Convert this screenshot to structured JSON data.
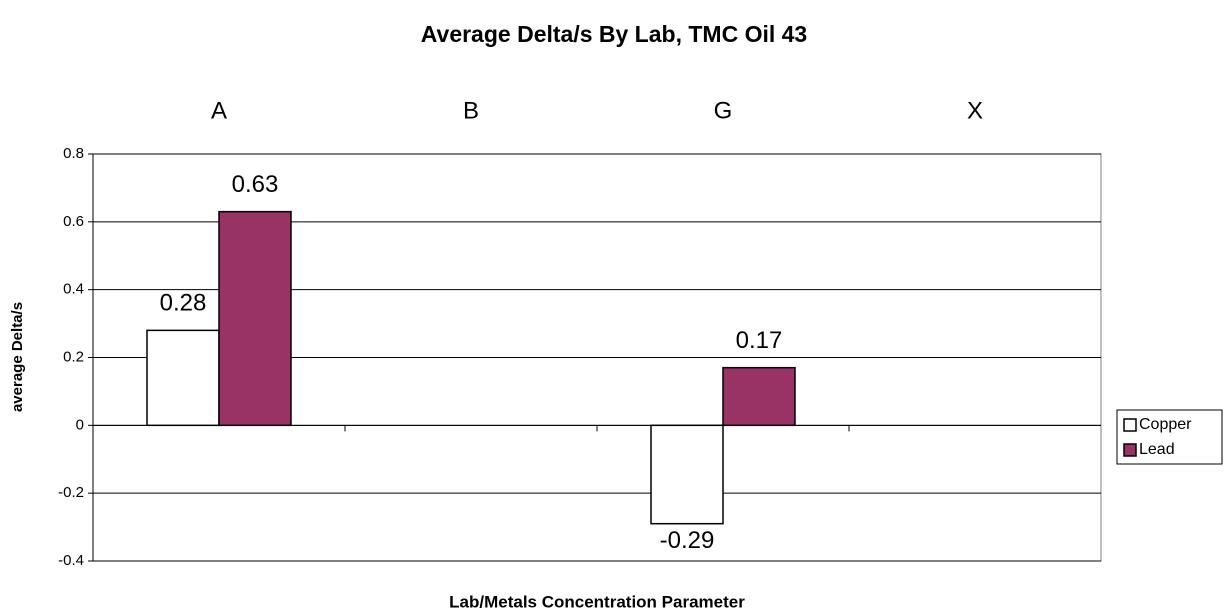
{
  "chart_data": {
    "type": "bar",
    "title": "Average Delta/s By Lab, TMC Oil 43",
    "xlabel": "Lab/Metals Concentration Parameter",
    "ylabel": "average Delta/s",
    "categories": [
      "A",
      "B",
      "G",
      "X"
    ],
    "series": [
      {
        "name": "Copper",
        "color": "#ffffff",
        "values": [
          0.28,
          null,
          -0.29,
          null
        ]
      },
      {
        "name": "Lead",
        "color": "#993366",
        "values": [
          0.63,
          null,
          0.17,
          null
        ]
      }
    ],
    "ylim": [
      -0.4,
      0.8
    ],
    "yticks": [
      -0.4,
      -0.2,
      0,
      0.2,
      0.4,
      0.6,
      0.8
    ],
    "grid": true,
    "legend": "right"
  }
}
